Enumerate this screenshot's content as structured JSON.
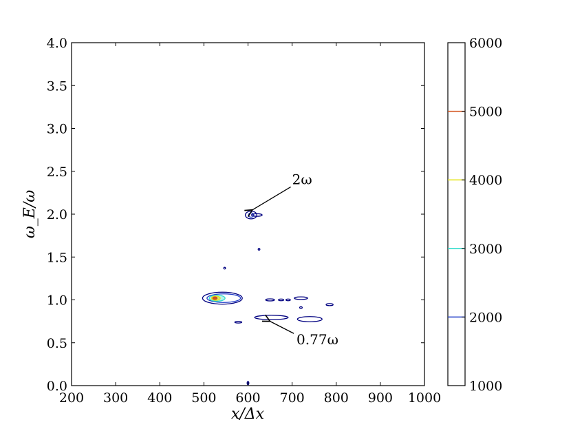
{
  "chart_data": {
    "type": "contour",
    "xlabel": "x/Δx",
    "ylabel": "ω_E/ω",
    "xlim": [
      200,
      1000
    ],
    "ylim": [
      0.0,
      4.0
    ],
    "x_ticks": [
      "200",
      "300",
      "400",
      "500",
      "600",
      "700",
      "800",
      "900",
      "1000"
    ],
    "y_ticks": [
      "0.0",
      "0.5",
      "1.0",
      "1.5",
      "2.0",
      "2.5",
      "3.0",
      "3.5",
      "4.0"
    ],
    "colorbar": {
      "range": [
        1000,
        6000
      ],
      "ticks": [
        "1000",
        "2000",
        "3000",
        "4000",
        "5000",
        "6000"
      ],
      "levels": [
        {
          "value": 2000,
          "color": "#1f3cc8"
        },
        {
          "value": 3000,
          "color": "#33dccc"
        },
        {
          "value": 4000,
          "color": "#e6e61a"
        },
        {
          "value": 5000,
          "color": "#d2501a"
        }
      ]
    },
    "contours": [
      {
        "level": 1000,
        "center": [
          542,
          1.02
        ],
        "rx": 45,
        "ry": 0.07
      },
      {
        "level": 2000,
        "center": [
          545,
          1.02
        ],
        "rx": 38,
        "ry": 0.05
      },
      {
        "level": 3000,
        "center": [
          530,
          1.02
        ],
        "rx": 18,
        "ry": 0.035
      },
      {
        "level": 4000,
        "center": [
          527,
          1.02
        ],
        "rx": 10,
        "ry": 0.025
      },
      {
        "level": 5000,
        "center": [
          525,
          1.02
        ],
        "rx": 5,
        "ry": 0.015
      },
      {
        "level": 1000,
        "center": [
          607,
          1.99
        ],
        "rx": 13,
        "ry": 0.045
      },
      {
        "level": 2000,
        "center": [
          607,
          1.99
        ],
        "rx": 6,
        "ry": 0.025
      },
      {
        "level": 1000,
        "center": [
          620,
          1.99
        ],
        "rx": 12,
        "ry": 0.015
      },
      {
        "level": 1000,
        "center": [
          653,
          0.795
        ],
        "rx": 38,
        "ry": 0.025
      },
      {
        "level": 1000,
        "center": [
          740,
          0.775
        ],
        "rx": 28,
        "ry": 0.03
      },
      {
        "level": 1000,
        "center": [
          720,
          1.02
        ],
        "rx": 15,
        "ry": 0.015
      },
      {
        "level": 1000,
        "center": [
          785,
          0.945
        ],
        "rx": 8,
        "ry": 0.012
      },
      {
        "level": 1000,
        "center": [
          650,
          1.0
        ],
        "rx": 10,
        "ry": 0.012
      },
      {
        "level": 1000,
        "center": [
          675,
          1.0
        ],
        "rx": 6,
        "ry": 0.01
      },
      {
        "level": 1000,
        "center": [
          691,
          1.0
        ],
        "rx": 5,
        "ry": 0.01
      },
      {
        "level": 1000,
        "center": [
          625,
          1.59
        ],
        "rx": 2,
        "ry": 0.01
      },
      {
        "level": 1000,
        "center": [
          547,
          1.37
        ],
        "rx": 2,
        "ry": 0.01
      },
      {
        "level": 1000,
        "center": [
          578,
          0.74
        ],
        "rx": 8,
        "ry": 0.01
      },
      {
        "level": 1000,
        "center": [
          600,
          0.03
        ],
        "rx": 2,
        "ry": 0.02
      },
      {
        "level": 1000,
        "center": [
          720,
          0.91
        ],
        "rx": 3,
        "ry": 0.01
      }
    ],
    "annotations": [
      {
        "text": "2ω",
        "label_at": [
          700,
          2.35
        ],
        "arrow_to": [
          610,
          2.05
        ]
      },
      {
        "text": "0.77ω",
        "label_at": [
          710,
          0.48
        ],
        "arrow_to": [
          650,
          0.75
        ]
      }
    ]
  }
}
